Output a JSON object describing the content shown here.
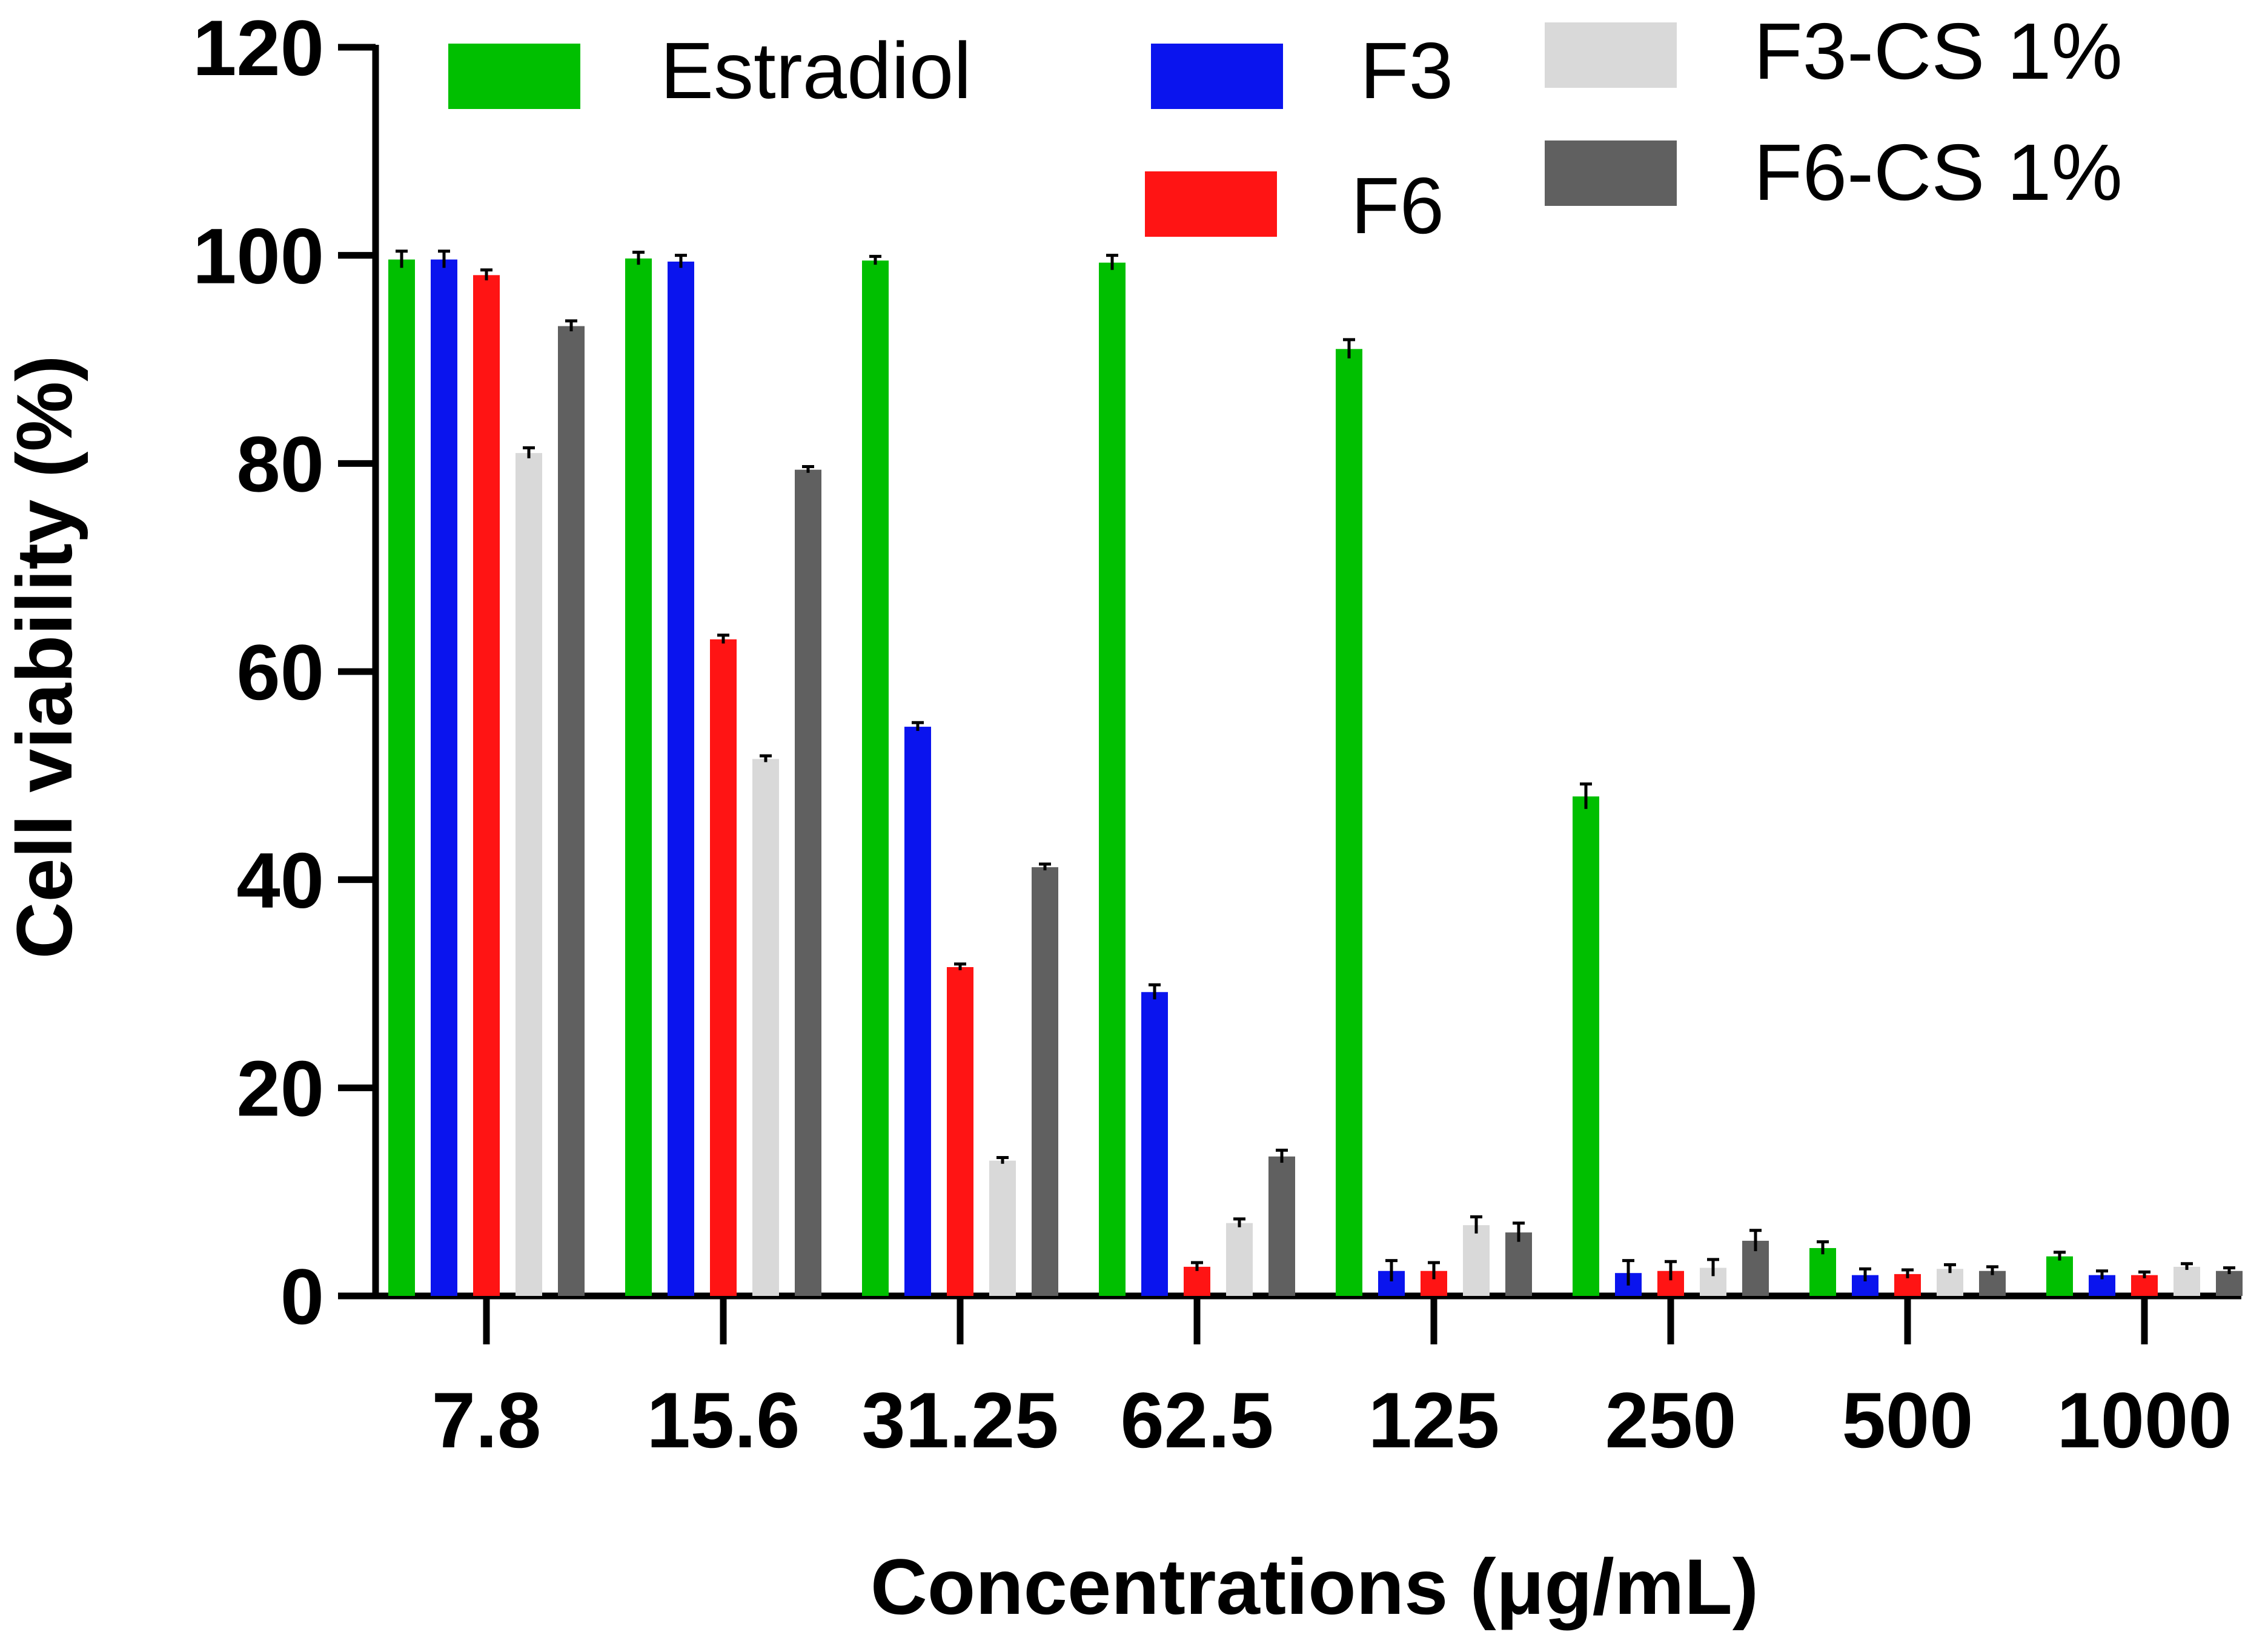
{
  "chart_data": {
    "type": "bar",
    "title": "",
    "xlabel": "Concentrations (μg/mL)",
    "ylabel": "Cell viability (%)",
    "ylim": [
      0,
      120
    ],
    "yticks": [
      "0",
      "20",
      "40",
      "60",
      "80",
      "100",
      "120"
    ],
    "categories": [
      "7.8",
      "15.6",
      "31.25",
      "62.5",
      "125",
      "250",
      "500",
      "1000"
    ],
    "series": [
      {
        "name": "Estradiol",
        "color": "#00bf00",
        "values": [
          99.6,
          99.7,
          99.5,
          99.3,
          91.0,
          48.0,
          4.6,
          3.8
        ],
        "errors": [
          0.8,
          0.6,
          0.4,
          0.7,
          0.9,
          1.2,
          0.6,
          0.4
        ]
      },
      {
        "name": "F3",
        "color": "#0a14ee",
        "values": [
          99.6,
          99.4,
          54.7,
          29.2,
          2.4,
          2.2,
          2.0,
          2.0
        ],
        "errors": [
          0.8,
          0.6,
          0.4,
          0.7,
          1.0,
          1.2,
          0.6,
          0.4
        ]
      },
      {
        "name": "F6",
        "color": "#ff1414",
        "values": [
          98.1,
          63.1,
          31.6,
          2.8,
          2.4,
          2.4,
          2.1,
          2.0
        ],
        "errors": [
          0.5,
          0.4,
          0.3,
          0.4,
          0.8,
          0.9,
          0.4,
          0.3
        ]
      },
      {
        "name": "F3-CS 1%",
        "color": "#d9d9d9",
        "values": [
          81.0,
          51.6,
          13.0,
          7.0,
          6.8,
          2.7,
          2.6,
          2.8
        ],
        "errors": [
          0.5,
          0.3,
          0.3,
          0.4,
          0.8,
          0.8,
          0.4,
          0.3
        ]
      },
      {
        "name": "F6-CS 1%",
        "color": "#606060",
        "values": [
          93.2,
          79.4,
          41.2,
          13.4,
          6.1,
          5.3,
          2.4,
          2.4
        ],
        "errors": [
          0.5,
          0.3,
          0.3,
          0.6,
          0.9,
          1.0,
          0.4,
          0.3
        ]
      }
    ],
    "legend": {
      "placement": "top",
      "entries": [
        "Estradiol",
        "F3",
        "F3-CS 1%",
        "F6",
        "F6-CS 1%"
      ]
    }
  }
}
